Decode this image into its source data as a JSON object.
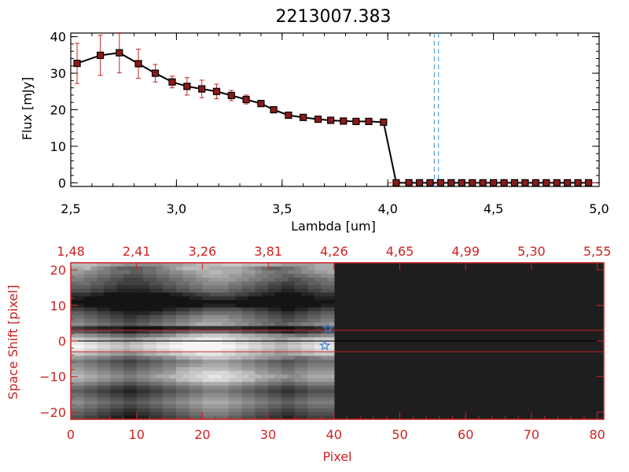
{
  "colors": {
    "axis": "#000000",
    "accent": "#cc2222",
    "marker": "#8b1a1a",
    "errorbar": "#cc2222",
    "vline": "#3a8fd0",
    "star": "#3a7fd5",
    "image_bg_right": "#1e1e1e"
  },
  "chart_data": [
    {
      "type": "line",
      "title": "2213007.383",
      "xlabel": "Lambda [um]",
      "ylabel": "Flux [mJy]",
      "xlim": [
        2.5,
        5.0
      ],
      "ylim": [
        -1,
        41
      ],
      "xticks": [
        2.5,
        3.0,
        3.5,
        4.0,
        4.5,
        5.0
      ],
      "xtick_labels": [
        "2,5",
        "3,0",
        "3,5",
        "4,0",
        "4,5",
        "5,0"
      ],
      "yticks": [
        0,
        10,
        20,
        30,
        40
      ],
      "ytick_labels": [
        "0",
        "10",
        "20",
        "30",
        "40"
      ],
      "series": [
        {
          "name": "flux",
          "x": [
            2.53,
            2.64,
            2.73,
            2.82,
            2.9,
            2.98,
            3.05,
            3.12,
            3.19,
            3.26,
            3.33,
            3.4,
            3.46,
            3.53,
            3.6,
            3.67,
            3.73,
            3.79,
            3.85,
            3.91,
            3.98,
            4.04,
            4.1,
            4.15,
            4.2,
            4.25,
            4.3,
            4.35,
            4.4,
            4.45,
            4.5,
            4.55,
            4.6,
            4.65,
            4.7,
            4.75,
            4.8,
            4.85,
            4.9,
            4.95
          ],
          "y": [
            32.7,
            34.9,
            35.6,
            32.6,
            30.0,
            27.6,
            26.4,
            25.7,
            25.0,
            23.9,
            22.8,
            21.7,
            20.0,
            18.5,
            17.9,
            17.4,
            17.1,
            16.9,
            16.8,
            16.8,
            16.6,
            0,
            0,
            0,
            0,
            0,
            0,
            0,
            0,
            0,
            0,
            0,
            0,
            0,
            0,
            0,
            0,
            0,
            0,
            0
          ],
          "err": [
            5.5,
            5.5,
            5.5,
            4.0,
            2.4,
            1.6,
            2.4,
            2.4,
            2.0,
            1.4,
            1.2,
            0.8,
            0.6,
            0.4,
            0.3,
            0.2,
            0.2,
            0.2,
            0.2,
            0.2,
            0.2,
            0,
            0,
            0,
            0,
            0,
            0,
            0,
            0,
            0,
            0,
            0,
            0,
            0,
            0,
            0,
            0,
            0,
            0,
            0
          ]
        }
      ],
      "vlines": [
        4.22,
        4.24
      ]
    },
    {
      "type": "heatmap",
      "xlabel": "Pixel",
      "ylabel": "Space Shift [pixel]",
      "xlim": [
        0,
        81
      ],
      "ylim": [
        -22,
        22
      ],
      "xticks": [
        0,
        10,
        20,
        30,
        40,
        50,
        60,
        70,
        80
      ],
      "xtick_labels": [
        "0",
        "10",
        "20",
        "30",
        "40",
        "50",
        "60",
        "70",
        "80"
      ],
      "yticks": [
        -20,
        -10,
        0,
        10,
        20
      ],
      "ytick_labels": [
        "−20",
        "−10",
        "0",
        "10",
        "20"
      ],
      "top_axis_label_values": [
        "1,48",
        "2,41",
        "3,26",
        "3,81",
        "4,26",
        "4,65",
        "4,99",
        "5,30",
        "5,55"
      ],
      "extraction_band": [
        -3,
        3
      ],
      "center_line": 0,
      "data_extent_pixel": 40,
      "stars": [
        {
          "x": 39.1,
          "y": 3.5
        },
        {
          "x": 38.6,
          "y": -1.3
        }
      ],
      "rows_grayscale": [
        "BBBBAA99888888999AABBBBCCCBBBBAA99999AAA",
        "AAB9876555566789ABBBBAAAAA98765566789AAA",
        "9988776665566778899AABBAAA9987766778899A",
        "88776655444556677889AAAA99887766556677889",
        "7766554433344556677889999887766554455667",
        "666554433333445566778888776655443344556",
        "55544332222233445566777766554433223344555",
        "44433221111122334455666655443322112233444",
        "2221100000000001122334444332211000011222",
        "11000000000000000011222221100000000001111",
        "000000000000000000000000000000000000000000",
        "1100000000000000000011111000000000000011",
        "3322110000000011223344444433221100112233",
        "5544332211112233445566666655443322334455",
        "66554433223344556677888877665544334455666",
        "7766554433445566778899998877665544556677",
        "8877665544556677889AAAA99887766556677889",
        "3322111100000011112222222211110000111223",
        "55443322112233445566666655443322112233445",
        "9988776655667788AABBCCCCBBAA998877667788",
        "CCBBAA99889AABBCCDDEEEEDDCCBBAA99AABBCC",
        "EEDDCCBBABBCCDDEEFFFFFFEEDDCCBBAABBCCDD",
        "FFEEDDCCBCCDDEEFFFFFFFFFFEEDDCCBBCCDDEE",
        "EEDDCCBBABBCCDDEEFFFFFFEEDDCCBBAABBCCDD",
        "CCBBAA99889AABBCCDDEEEEDDCCBBAA99AABBCC",
        "9988776655667788AABBCCCCBBAA998877667788",
        "77665544334455667788999988776655445566",
        "88776655445566778899AAAA99887766556677",
        "9988776655667788AABBBBBBAA998877667788",
        "AA99887766778899BBCCDDDDCCBB998877889",
        "BBAA998877889AABBCCDDEEDDCCBBAA99889AA",
        "AA99887766778899BBCCDDDDCCBB998877889",
        "88776655445566778899AAAA99887766556677",
        "66554433223344556677888877665544334455",
        "55443322112233445566777766554433223344",
        "66554433223344556677888877665544334455",
        "77665544334455667788999988776655445566",
        "88776655445566778899AAAA99887766556677",
        "77665544334455667788999988776655445566",
        "66554433223344556677888877665544334455",
        "55443322112233445566777766554433223344",
        "44332211001122334455666655443322112233"
      ]
    }
  ]
}
